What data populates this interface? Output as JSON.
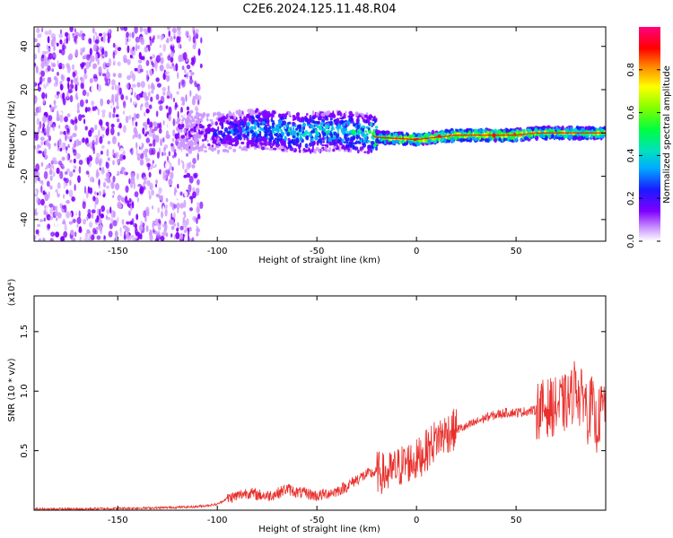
{
  "figure": {
    "title": "C2E6.2024.125.11.48.R04"
  },
  "chart_data": [
    {
      "type": "heatmap",
      "xlabel": "Height of straight line (km)",
      "ylabel": "Frequency (Hz)",
      "xlim": [
        -192,
        95
      ],
      "ylim": [
        -50,
        49
      ],
      "x_ticks": [
        -150,
        -100,
        -50,
        0,
        50
      ],
      "y_ticks": [
        -40,
        -20,
        0,
        20,
        40
      ],
      "colorbar": {
        "label": "Normalized spectral amplitude",
        "ticks": [
          0.0,
          0.2,
          0.4,
          0.6,
          0.8
        ],
        "range": [
          0,
          1
        ]
      },
      "description_points": {
        "x": [
          -192,
          -150,
          -110,
          -100,
          -80,
          -60,
          -40,
          -25,
          -20,
          0,
          20,
          40,
          50,
          60,
          80,
          95
        ],
        "peak_frequency": [
          0,
          0,
          0,
          0,
          2,
          0,
          1,
          0,
          -2,
          -3,
          -1,
          -1,
          -1,
          0,
          0,
          0
        ],
        "amplitude": [
          0.15,
          0.15,
          0.2,
          0.3,
          0.45,
          0.5,
          0.5,
          0.55,
          0.75,
          0.95,
          0.95,
          0.95,
          0.9,
          0.85,
          0.8,
          0.75
        ]
      }
    },
    {
      "type": "line",
      "xlabel": "Height of straight line (km)",
      "ylabel": "SNR (10 * v/v)",
      "y_multiplier": "(x10⁴)",
      "xlim": [
        -192,
        95
      ],
      "ylim": [
        0,
        1.8
      ],
      "x_ticks": [
        -150,
        -100,
        -50,
        0,
        50
      ],
      "y_ticks": [
        0.5,
        1.0,
        1.5
      ],
      "y_tick_labels": [
        "0.5",
        "1.0",
        "1.5"
      ],
      "series": [
        {
          "color": "#e8302c",
          "x": [
            -192,
            -170,
            -150,
            -130,
            -110,
            -100,
            -95,
            -90,
            -85,
            -80,
            -75,
            -70,
            -65,
            -60,
            -55,
            -50,
            -45,
            -40,
            -35,
            -30,
            -25,
            -20,
            -15,
            -10,
            -5,
            0,
            5,
            10,
            15,
            20,
            25,
            30,
            35,
            40,
            45,
            50,
            55,
            60,
            65,
            70,
            75,
            78,
            80,
            82,
            84,
            86,
            88,
            90,
            92,
            95
          ],
          "y": [
            0.01,
            0.01,
            0.015,
            0.02,
            0.03,
            0.05,
            0.1,
            0.12,
            0.15,
            0.13,
            0.12,
            0.14,
            0.18,
            0.15,
            0.14,
            0.12,
            0.14,
            0.16,
            0.2,
            0.26,
            0.3,
            0.32,
            0.3,
            0.35,
            0.4,
            0.42,
            0.5,
            0.6,
            0.65,
            0.68,
            0.7,
            0.74,
            0.78,
            0.8,
            0.82,
            0.82,
            0.83,
            0.84,
            0.86,
            0.87,
            0.9,
            0.95,
            1.1,
            0.9,
            1.0,
            0.8,
            0.9,
            0.7,
            0.8,
            0.9
          ]
        }
      ]
    }
  ]
}
